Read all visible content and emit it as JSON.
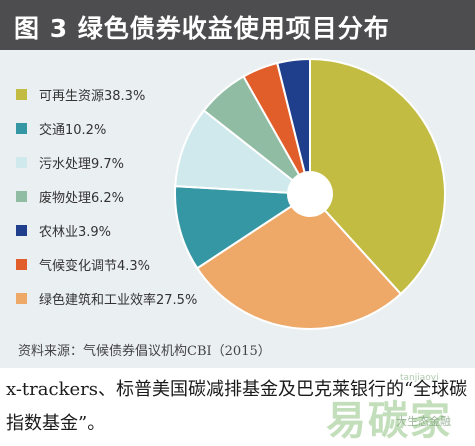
{
  "figure": {
    "title": "图 3  绿色债券收益使用项目分布",
    "source_prefix": "资料来源：",
    "source_text": "气候债券倡议机构CBI（2015）"
  },
  "chart_data": {
    "type": "pie",
    "donut": true,
    "legend_placement": "left",
    "slices": [
      {
        "name": "可再生资源",
        "value": 38.3,
        "label": "可再生资源38.3%",
        "color": "#c2bd42"
      },
      {
        "name": "绿色建筑和工业效率",
        "value": 27.5,
        "label": "绿色建筑和工业效率27.5%",
        "color": "#eea868"
      },
      {
        "name": "交通",
        "value": 10.2,
        "label": "交通10.2%",
        "color": "#3597a3"
      },
      {
        "name": "污水处理",
        "value": 9.7,
        "label": "污水处理9.7%",
        "color": "#cfe9ec"
      },
      {
        "name": "废物处理",
        "value": 6.2,
        "label": "废物处理6.2%",
        "color": "#8fbca2"
      },
      {
        "name": "气候变化调节",
        "value": 4.3,
        "label": "气候变化调节4.3%",
        "color": "#e15e2a"
      },
      {
        "name": "农林业",
        "value": 3.9,
        "label": "农林业3.9%",
        "color": "#1f3f8c"
      }
    ],
    "legend": [
      {
        "label": "可再生资源38.3%",
        "color": "#c2bd42"
      },
      {
        "label": "交通10.2%",
        "color": "#3597a3"
      },
      {
        "label": "污水处理9.7%",
        "color": "#cfe9ec"
      },
      {
        "label": "废物处理6.2%",
        "color": "#8fbca2"
      },
      {
        "label": "农林业3.9%",
        "color": "#1f3f8c"
      },
      {
        "label": "气候变化调节4.3%",
        "color": "#e15e2a"
      },
      {
        "label": "绿色建筑和工业效率27.5%",
        "color": "#eea868"
      }
    ]
  },
  "body": {
    "text": "x-trackers、标普美国碳减排基金及巴克莱银行的“全球碳指数基金”。"
  },
  "watermark": {
    "logo": "易碳家",
    "sub": "tanjiaoyi",
    "small": "大生态金融"
  }
}
